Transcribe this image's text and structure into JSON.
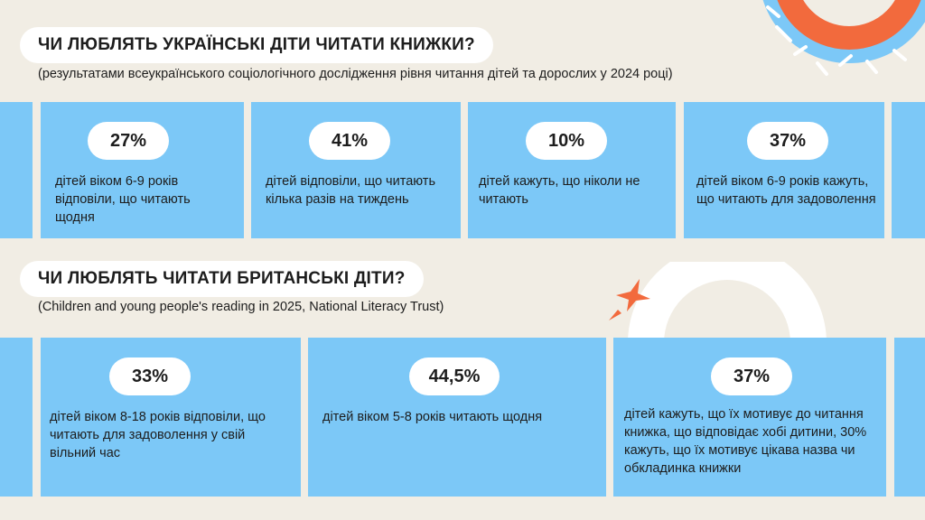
{
  "section_ua": {
    "title": "ЧИ ЛЮБЛЯТЬ УКРАЇНСЬКІ ДІТИ ЧИТАТИ КНИЖКИ?",
    "subtitle": "(результатами всеукраїнського соціологічного дослідження рівня читання дітей та дорослих у 2024 році)",
    "cards": [
      {
        "value": "27%",
        "text": "дітей віком 6-9 років відповіли, що читають щодня"
      },
      {
        "value": "41%",
        "text": "дітей відповіли, що читають кілька разів на тиждень"
      },
      {
        "value": "10%",
        "text": "дітей кажуть, що ніколи не читають"
      },
      {
        "value": "37%",
        "text": "дітей віком 6-9 років кажуть, що читають для задоволення"
      }
    ]
  },
  "section_uk": {
    "title": "ЧИ ЛЮБЛЯТЬ ЧИТАТИ БРИТАНСЬКІ ДІТИ?",
    "subtitle": "(Children and young people's reading in 2025, National Literacy Trust)",
    "cards": [
      {
        "value": "33%",
        "text": "дітей віком 8-18 років відповіли, що читають для задоволення у свій вільний час"
      },
      {
        "value": "44,5%",
        "text": "дітей віком 5-8 років читають щодня"
      },
      {
        "value": "37%",
        "text": "дітей кажуть, що їх мотивує до читання книжка, що відповідає хобі дитини, 30% кажуть, що їх мотивує цікава назва чи обкладинка книжки"
      }
    ]
  },
  "colors": {
    "background": "#f1ede4",
    "card": "#7cc8f7",
    "accent_orange": "#f26a3d",
    "white": "#ffffff"
  }
}
